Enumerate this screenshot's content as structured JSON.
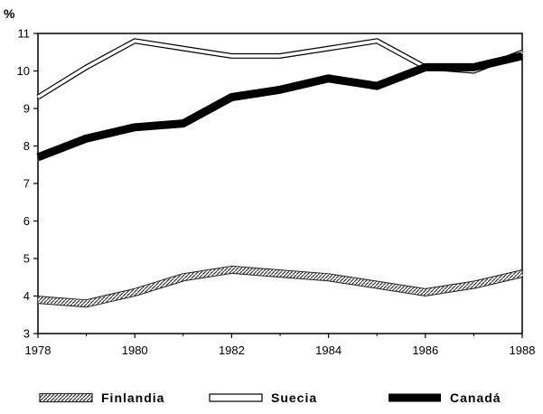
{
  "chart_data": {
    "type": "line",
    "title": "",
    "xlabel": "",
    "ylabel": "%",
    "xlim": [
      1978,
      1988
    ],
    "ylim": [
      3,
      11
    ],
    "x_ticks": [
      "1978",
      "1980",
      "1982",
      "1984",
      "1986",
      "1988"
    ],
    "y_ticks": [
      "3",
      "4",
      "5",
      "6",
      "7",
      "8",
      "9",
      "10",
      "11"
    ],
    "grid": false,
    "legend_position": "bottom",
    "x": [
      1978,
      1979,
      1980,
      1981,
      1982,
      1983,
      1984,
      1985,
      1986,
      1987,
      1988
    ],
    "series": [
      {
        "name": "Finlandia",
        "style": "hatched",
        "color": "#555555",
        "values": [
          3.9,
          3.8,
          4.1,
          4.5,
          4.7,
          4.6,
          4.5,
          4.3,
          4.1,
          4.3,
          4.6
        ]
      },
      {
        "name": "Suecia",
        "style": "hollow",
        "color": "#000000",
        "values": [
          9.3,
          10.1,
          10.8,
          10.6,
          10.4,
          10.4,
          10.6,
          10.8,
          10.1,
          10.0,
          10.5
        ]
      },
      {
        "name": "Canadá",
        "style": "solid",
        "color": "#000000",
        "values": [
          7.7,
          8.2,
          8.5,
          8.6,
          9.3,
          9.5,
          9.8,
          9.6,
          10.1,
          10.1,
          10.4
        ]
      }
    ]
  }
}
